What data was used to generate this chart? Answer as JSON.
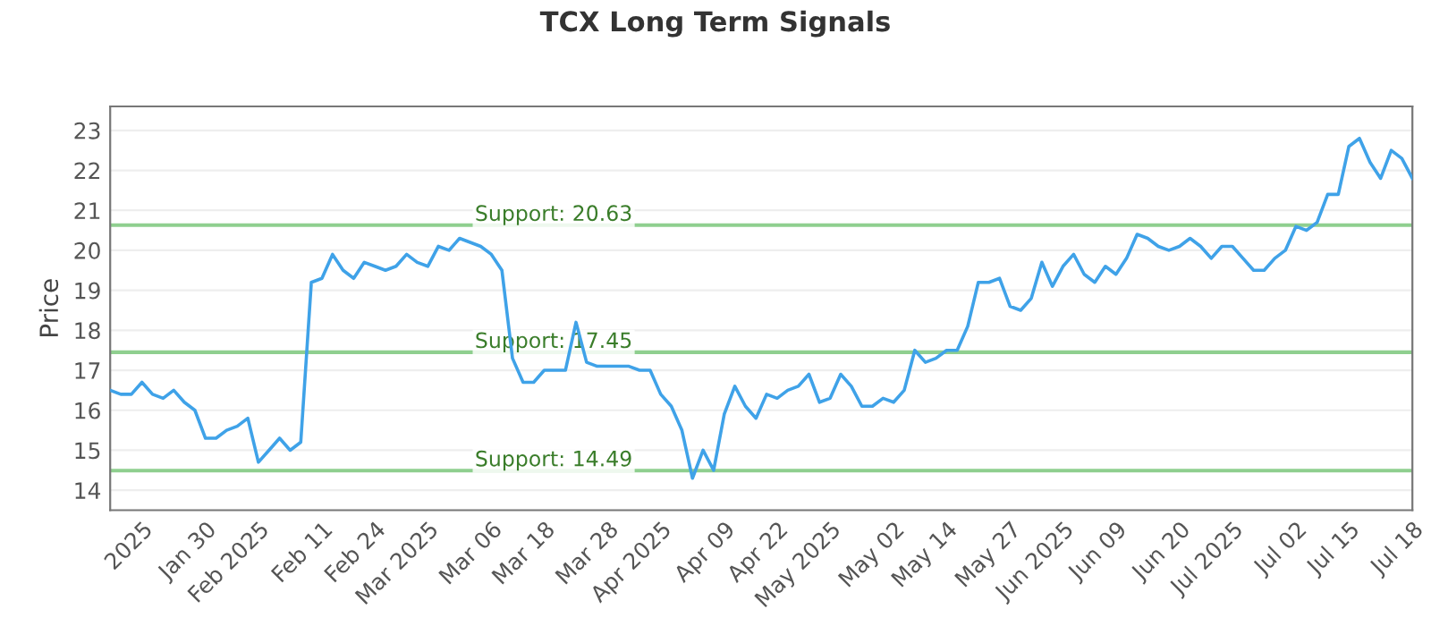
{
  "chart_data": {
    "type": "line",
    "title": "TCX Long Term Signals",
    "ylabel": "Price",
    "categories": [
      null,
      null,
      null,
      "2025",
      null,
      null,
      null,
      null,
      null,
      "Jan 30",
      null,
      null,
      null,
      null,
      "Feb 2025",
      null,
      null,
      null,
      null,
      null,
      "Feb 11",
      null,
      null,
      null,
      null,
      "Feb 24",
      null,
      null,
      null,
      null,
      "Mar 2025",
      null,
      null,
      null,
      null,
      null,
      "Mar 06",
      null,
      null,
      null,
      null,
      "Mar 18",
      null,
      null,
      null,
      null,
      null,
      "Mar 28",
      null,
      null,
      null,
      null,
      "Apr 2025",
      null,
      null,
      null,
      null,
      null,
      "Apr 09",
      null,
      null,
      null,
      null,
      "Apr 22",
      null,
      null,
      null,
      null,
      "May 2025",
      null,
      null,
      null,
      null,
      null,
      "May 02",
      null,
      null,
      null,
      null,
      "May 14",
      null,
      null,
      null,
      null,
      null,
      "May 27",
      null,
      null,
      null,
      null,
      "Jun 2025",
      null,
      null,
      null,
      null,
      "Jun 09",
      null,
      null,
      null,
      null,
      null,
      "Jun 20",
      null,
      null,
      null,
      null,
      "Jul 2025",
      null,
      null,
      null,
      null,
      null,
      "Jul 02",
      null,
      null,
      null,
      null,
      "Jul 15",
      null,
      null,
      null,
      null,
      null,
      "Jul 18"
    ],
    "series": [
      {
        "color": "#3fa2e8",
        "values": [
          16.5,
          16.4,
          16.4,
          16.7,
          16.4,
          16.3,
          16.5,
          16.2,
          16.0,
          15.3,
          15.3,
          15.5,
          15.6,
          15.8,
          14.7,
          15.0,
          15.3,
          15.0,
          15.2,
          19.2,
          19.3,
          19.9,
          19.5,
          19.3,
          19.7,
          19.6,
          19.5,
          19.6,
          19.9,
          19.7,
          19.6,
          20.1,
          20.0,
          20.3,
          20.2,
          20.1,
          19.9,
          19.5,
          17.3,
          16.7,
          16.7,
          17.0,
          17.0,
          17.0,
          18.2,
          17.2,
          17.1,
          17.1,
          17.1,
          17.1,
          17.0,
          17.0,
          16.4,
          16.1,
          15.5,
          14.3,
          15.0,
          14.5,
          15.9,
          16.6,
          16.1,
          15.8,
          16.4,
          16.3,
          16.5,
          16.6,
          16.9,
          16.2,
          16.3,
          16.9,
          16.6,
          16.1,
          16.1,
          16.3,
          16.2,
          16.5,
          17.5,
          17.2,
          17.3,
          17.5,
          17.5,
          18.1,
          19.2,
          19.2,
          19.3,
          18.6,
          18.5,
          18.8,
          19.7,
          19.1,
          19.6,
          19.9,
          19.4,
          19.2,
          19.6,
          19.4,
          19.8,
          20.4,
          20.3,
          20.1,
          20.0,
          20.1,
          20.3,
          20.1,
          19.8,
          20.1,
          20.1,
          19.8,
          19.5,
          19.5,
          19.8,
          20.0,
          20.6,
          20.5,
          20.7,
          21.4,
          21.4,
          22.6,
          22.8,
          22.2,
          21.8,
          22.5,
          22.3,
          21.8
        ]
      }
    ],
    "ylim": [
      13.5,
      23.6
    ],
    "yticks": [
      14,
      15,
      16,
      17,
      18,
      19,
      20,
      21,
      22,
      23
    ],
    "grid": "y",
    "ref_lines": [
      {
        "axis": "y",
        "value": 20.63,
        "label": "Support: 20.63",
        "color": "#8fcf8f"
      },
      {
        "axis": "y",
        "value": 17.45,
        "label": "Support: 17.45",
        "color": "#8fcf8f"
      },
      {
        "axis": "y",
        "value": 14.49,
        "label": "Support: 14.49",
        "color": "#8fcf8f"
      }
    ]
  }
}
